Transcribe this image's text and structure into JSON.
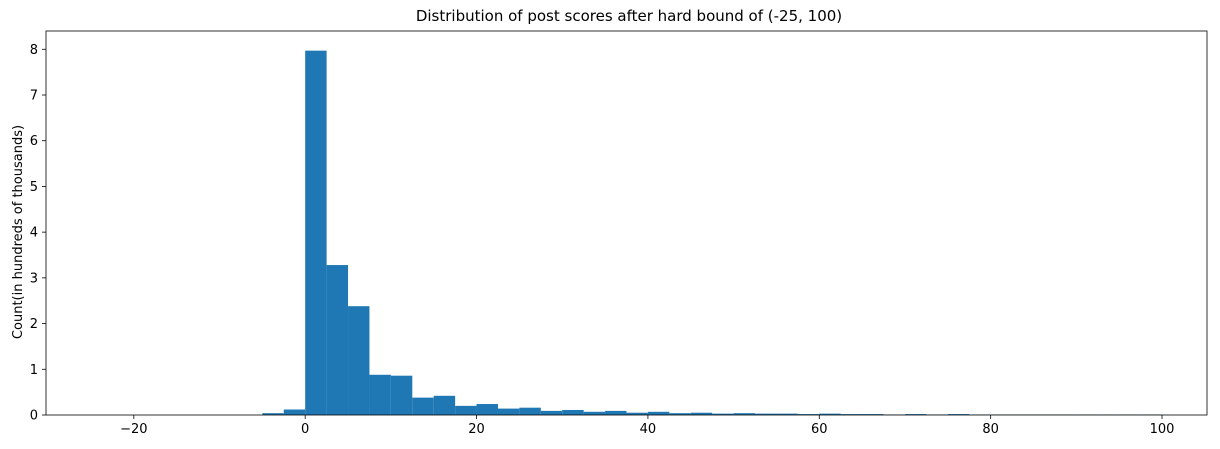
{
  "chart_data": {
    "type": "bar",
    "title": "Distribution of post scores after hard bound of (-25, 100)",
    "xlabel": "",
    "ylabel": "Count(in hundreds of thousands)",
    "xlim": [
      -30.25,
      105.25
    ],
    "ylim": [
      0,
      8.4
    ],
    "x_ticks": [
      -20,
      0,
      20,
      40,
      60,
      80,
      100
    ],
    "y_ticks": [
      0,
      1,
      2,
      3,
      4,
      5,
      6,
      7,
      8
    ],
    "bin_width": 2.5,
    "bar_color": "#1f77b4",
    "grid": false,
    "bins": [
      {
        "x0": -5.0,
        "value": 0.04
      },
      {
        "x0": -2.5,
        "value": 0.12
      },
      {
        "x0": 0.0,
        "value": 7.97
      },
      {
        "x0": 2.5,
        "value": 3.28
      },
      {
        "x0": 5.0,
        "value": 2.38
      },
      {
        "x0": 7.5,
        "value": 0.88
      },
      {
        "x0": 10.0,
        "value": 0.86
      },
      {
        "x0": 12.5,
        "value": 0.38
      },
      {
        "x0": 15.0,
        "value": 0.42
      },
      {
        "x0": 17.5,
        "value": 0.2
      },
      {
        "x0": 20.0,
        "value": 0.24
      },
      {
        "x0": 22.5,
        "value": 0.14
      },
      {
        "x0": 25.0,
        "value": 0.16
      },
      {
        "x0": 27.5,
        "value": 0.09
      },
      {
        "x0": 30.0,
        "value": 0.11
      },
      {
        "x0": 32.5,
        "value": 0.07
      },
      {
        "x0": 35.0,
        "value": 0.09
      },
      {
        "x0": 37.5,
        "value": 0.05
      },
      {
        "x0": 40.0,
        "value": 0.07
      },
      {
        "x0": 42.5,
        "value": 0.04
      },
      {
        "x0": 45.0,
        "value": 0.05
      },
      {
        "x0": 47.5,
        "value": 0.03
      },
      {
        "x0": 50.0,
        "value": 0.04
      },
      {
        "x0": 52.5,
        "value": 0.03
      },
      {
        "x0": 55.0,
        "value": 0.03
      },
      {
        "x0": 57.5,
        "value": 0.02
      },
      {
        "x0": 60.0,
        "value": 0.03
      },
      {
        "x0": 62.5,
        "value": 0.02
      },
      {
        "x0": 65.0,
        "value": 0.02
      },
      {
        "x0": 67.5,
        "value": 0.01
      },
      {
        "x0": 70.0,
        "value": 0.02
      },
      {
        "x0": 72.5,
        "value": 0.01
      },
      {
        "x0": 75.0,
        "value": 0.02
      },
      {
        "x0": 77.5,
        "value": 0.01
      },
      {
        "x0": 80.0,
        "value": 0.01
      },
      {
        "x0": 82.5,
        "value": 0.01
      },
      {
        "x0": 85.0,
        "value": 0.01
      },
      {
        "x0": 87.5,
        "value": 0.01
      },
      {
        "x0": 90.0,
        "value": 0.01
      },
      {
        "x0": 92.5,
        "value": 0.01
      },
      {
        "x0": 95.0,
        "value": 0.01
      },
      {
        "x0": 97.5,
        "value": 0.01
      }
    ]
  }
}
